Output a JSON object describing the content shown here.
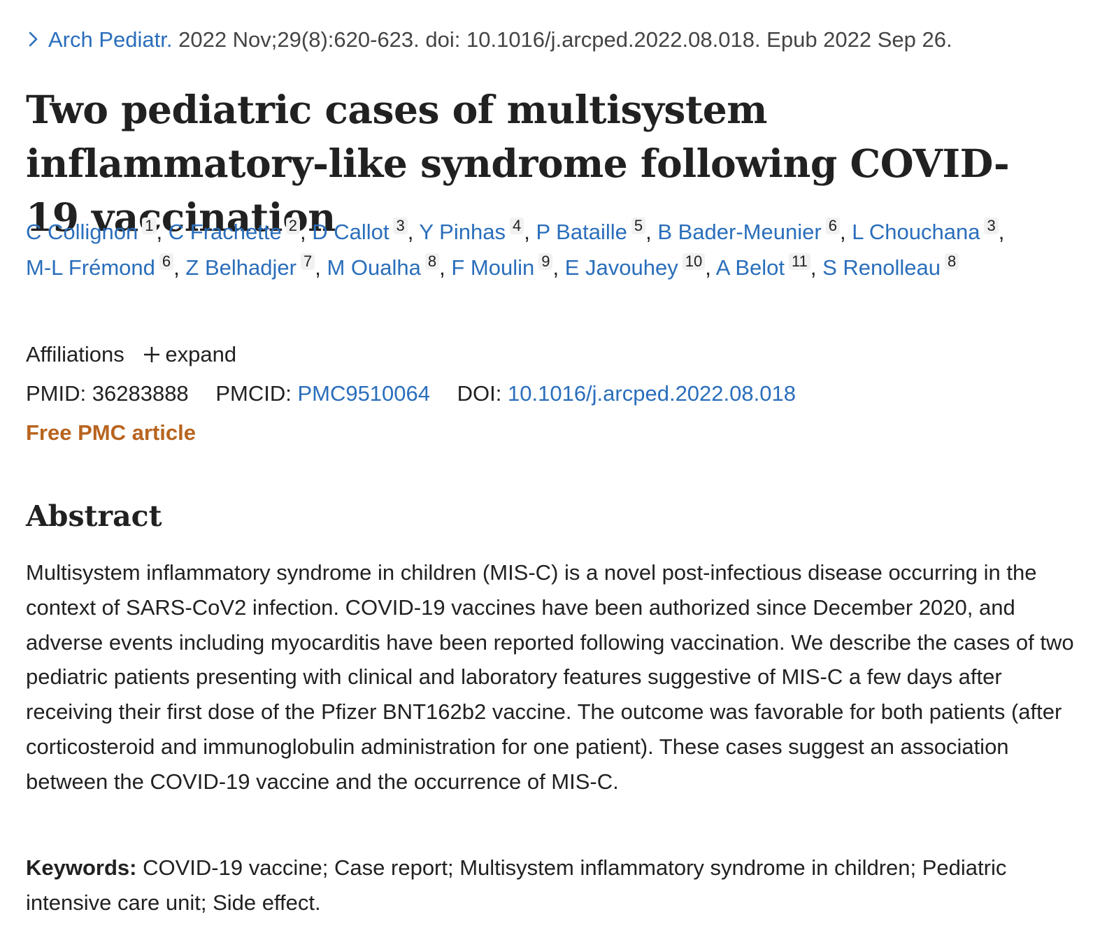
{
  "citation": {
    "journal": "Arch Pediatr.",
    "details": " 2022 Nov;29(8):620-623. doi: 10.1016/j.arcped.2022.08.018. Epub 2022 Sep 26."
  },
  "title": "Two pediatric cases of multisystem inflammatory-like syndrome following COVID-19 vaccination",
  "authors": [
    {
      "name": "C Collignon",
      "aff": "1"
    },
    {
      "name": "C Frachette",
      "aff": "2"
    },
    {
      "name": "D Callot",
      "aff": "3"
    },
    {
      "name": "Y Pinhas",
      "aff": "4"
    },
    {
      "name": "P Bataille",
      "aff": "5"
    },
    {
      "name": "B Bader-Meunier",
      "aff": "6"
    },
    {
      "name": "L Chouchana",
      "aff": "3"
    },
    {
      "name": "M-L Frémond",
      "aff": "6"
    },
    {
      "name": "Z Belhadjer",
      "aff": "7"
    },
    {
      "name": "M Oualha",
      "aff": "8"
    },
    {
      "name": "F Moulin",
      "aff": "9"
    },
    {
      "name": "E Javouhey",
      "aff": "10"
    },
    {
      "name": "A Belot",
      "aff": "11"
    },
    {
      "name": "S Renolleau",
      "aff": "8"
    }
  ],
  "affiliations": {
    "label": "Affiliations",
    "expand_label": "expand"
  },
  "identifiers": {
    "pmid_label": "PMID:",
    "pmid": "36283888",
    "pmcid_label": "PMCID:",
    "pmcid": "PMC9510064",
    "doi_label": "DOI:",
    "doi": "10.1016/j.arcped.2022.08.018"
  },
  "free_pmc_label": "Free PMC article",
  "abstract": {
    "heading": "Abstract",
    "text": "Multisystem inflammatory syndrome in children (MIS-C) is a novel post-infectious disease occurring in the context of SARS-CoV2 infection. COVID-19 vaccines have been authorized since December 2020, and adverse events including myocarditis have been reported following vaccination. We describe the cases of two pediatric patients presenting with clinical and laboratory features suggestive of MIS-C a few days after receiving their first dose of the Pfizer BNT162b2 vaccine. The outcome was favorable for both patients (after corticosteroid and immunoglobulin administration for one patient). These cases suggest an association between the COVID-19 vaccine and the occurrence of MIS-C."
  },
  "keywords": {
    "label": "Keywords:",
    "text": " COVID-19 vaccine; Case report; Multisystem inflammatory syndrome in children; Pediatric intensive care unit; Side effect."
  },
  "colors": {
    "link": "#2a6ebb",
    "text": "#212121",
    "free_pmc": "#b8641f",
    "aff_badge_bg": "#f1f1f1"
  },
  "icons": {
    "citation_chevron": "chevron-right-icon",
    "expand": "plus-icon"
  }
}
